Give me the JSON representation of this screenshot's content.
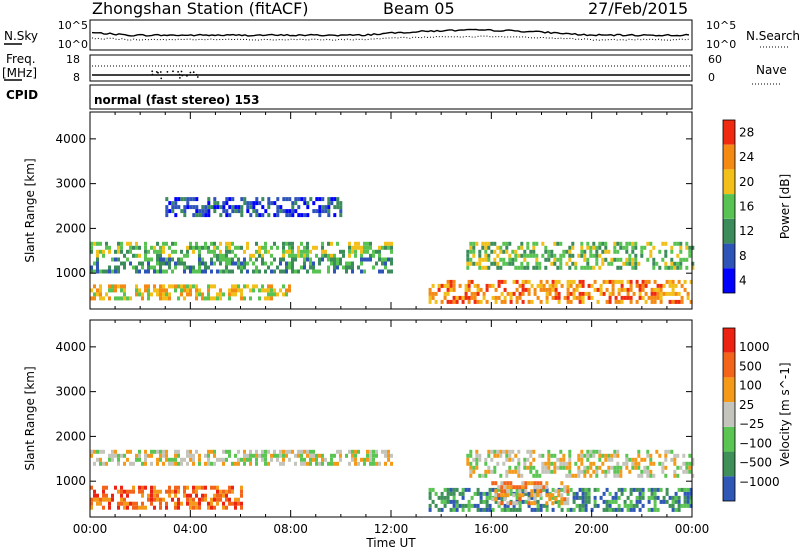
{
  "header": {
    "station": "Zhongshan Station (fitACF)",
    "beam": "Beam 05",
    "date": "27/Feb/2015"
  },
  "summary_panel": {
    "left_label": "N.Sky",
    "left_ticks": [
      "10^5",
      "10^0"
    ],
    "right_label": "N.Search",
    "right_ticks": [
      "10^5",
      "10^0"
    ]
  },
  "freq_panel": {
    "left_label_1": "Freq.",
    "left_label_2": "[MHz]",
    "left_ticks": [
      "18",
      "8"
    ],
    "right_label": "Nave",
    "right_ticks": [
      "60",
      "0"
    ]
  },
  "cpid": {
    "label": "CPID",
    "text": "normal (fast stereo) 153"
  },
  "colors": {
    "power_scale": [
      "#0000ff",
      "#2f54b8",
      "#3b8c5a",
      "#58c352",
      "#f2c018",
      "#f48a14",
      "#ef2a10"
    ],
    "velocity_scale": [
      "#2f58b6",
      "#3e8f58",
      "#5bc553",
      "#c4c4bc",
      "#f49a18",
      "#f3641a",
      "#ec2212"
    ]
  },
  "chart_data": [
    {
      "type": "heatmap",
      "panel": "power",
      "ylabel": "Slant Range [km]",
      "yticks": [
        "1000",
        "2000",
        "3000",
        "4000"
      ],
      "ylim": [
        200,
        4600
      ],
      "xlim": [
        0,
        24
      ],
      "colorbar": {
        "label": "Power [dB]",
        "ticks": [
          "4",
          "8",
          "12",
          "16",
          "20",
          "24",
          "28"
        ],
        "range": [
          0,
          30
        ]
      },
      "echo_bands": [
        {
          "t0": 0.0,
          "t1": 12.0,
          "r0": 1350,
          "r1": 1700,
          "level": 3
        },
        {
          "t0": 0.0,
          "t1": 12.0,
          "r0": 1050,
          "r1": 1350,
          "level": 2
        },
        {
          "t0": 0.0,
          "t1": 8.0,
          "r0": 450,
          "r1": 750,
          "level": 4
        },
        {
          "t0": 13.5,
          "t1": 24.0,
          "r0": 350,
          "r1": 850,
          "level": 5
        },
        {
          "t0": 15.0,
          "t1": 24.0,
          "r0": 1100,
          "r1": 1700,
          "level": 3
        },
        {
          "t0": 3.0,
          "t1": 10.0,
          "r0": 2300,
          "r1": 2700,
          "level": 1
        }
      ]
    },
    {
      "type": "heatmap",
      "panel": "velocity",
      "ylabel": "Slant Range [km]",
      "yticks": [
        "1000",
        "2000",
        "3000",
        "4000"
      ],
      "ylim": [
        200,
        4600
      ],
      "xlim": [
        0,
        24
      ],
      "xticks": [
        "00:00",
        "04:00",
        "08:00",
        "12:00",
        "16:00",
        "20:00",
        "00:00"
      ],
      "xlabel": "Time UT",
      "colorbar": {
        "label": "Velocity [m s^-1]",
        "ticks": [
          "1000",
          "500",
          "100",
          "25",
          "−25",
          "−100",
          "−500",
          "−1000"
        ],
        "range": [
          -1000,
          1000
        ]
      },
      "echo_bands": [
        {
          "t0": 0.0,
          "t1": 12.0,
          "r0": 1350,
          "r1": 1700,
          "level": 3
        },
        {
          "t0": 0.0,
          "t1": 6.0,
          "r0": 450,
          "r1": 900,
          "level": 5
        },
        {
          "t0": 13.5,
          "t1": 24.0,
          "r0": 350,
          "r1": 850,
          "level": 1
        },
        {
          "t0": 15.0,
          "t1": 24.0,
          "r0": 1100,
          "r1": 1700,
          "level": 3
        },
        {
          "t0": 16.0,
          "t1": 19.0,
          "r0": 500,
          "r1": 1000,
          "level": 4
        }
      ]
    }
  ]
}
